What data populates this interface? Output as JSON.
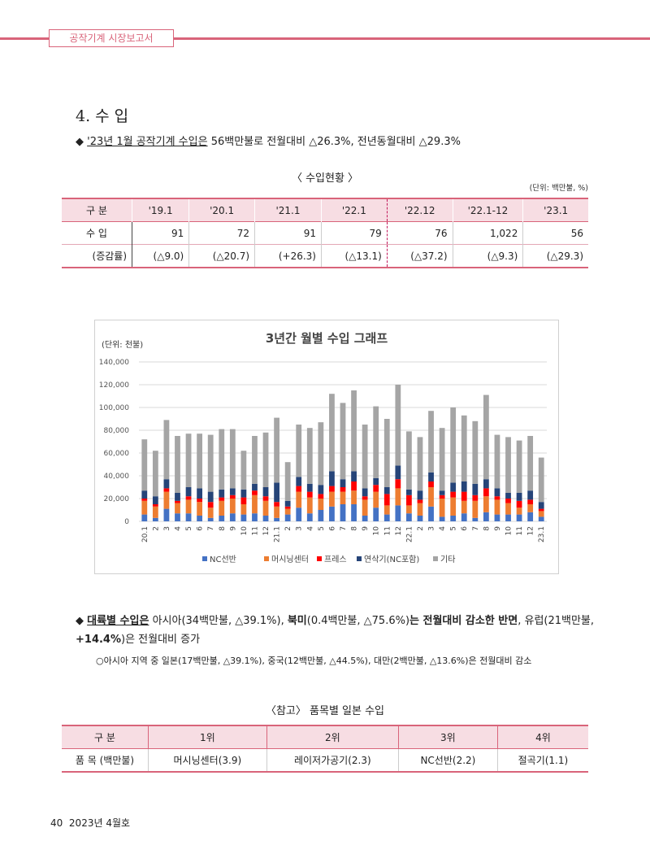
{
  "header": {
    "tab_label": "공작기계 시장보고서"
  },
  "section": {
    "title": "4. 수 입"
  },
  "bullet1": {
    "marker": "◆",
    "underlined": "'23년 1월 공작기계 수입은",
    "rest": " 56백만불로 전월대비 △26.3%, 전년동월대비 △29.3%"
  },
  "table1": {
    "title": "〈 수입현황 〉",
    "unit": "(단위: 백만불, %)",
    "headers": [
      "구 분",
      "'19.1",
      "'20.1",
      "'21.1",
      "'22.1",
      "'22.12",
      "'22.1-12",
      "'23.1"
    ],
    "rows": [
      [
        "수 입",
        "91",
        "72",
        "91",
        "79",
        "76",
        "1,022",
        "56"
      ],
      [
        "(증감률)",
        "(△9.0)",
        "(△20.7)",
        "(+26.3)",
        "(△13.1)",
        "(△37.2)",
        "(△9.3)",
        "(△29.3)"
      ]
    ]
  },
  "chart_data": {
    "type": "bar",
    "stacked": true,
    "title": "3년간 월별 수입 그래프",
    "unit_label": "(단위: 천불)",
    "yticks": [
      "0",
      "20,000",
      "40,000",
      "60,000",
      "80,000",
      "100,000",
      "120,000",
      "140,000"
    ],
    "ylim": [
      0,
      140000
    ],
    "categories": [
      "20.1",
      "2",
      "3",
      "4",
      "5",
      "6",
      "7",
      "8",
      "9",
      "10",
      "11",
      "12",
      "21.1",
      "2",
      "3",
      "4",
      "5",
      "6",
      "7",
      "8",
      "9",
      "10",
      "11",
      "12",
      "22.1",
      "2",
      "3",
      "4",
      "5",
      "6",
      "7",
      "8",
      "9",
      "10",
      "11",
      "12",
      "23.1"
    ],
    "series": [
      {
        "name": "NC선반",
        "color": "#4472c4",
        "values": [
          6000,
          3000,
          11000,
          7000,
          7000,
          5000,
          3000,
          5000,
          7000,
          6000,
          7000,
          5000,
          3000,
          6000,
          12000,
          7000,
          10000,
          13000,
          15000,
          15000,
          5000,
          12000,
          6000,
          14000,
          7000,
          5000,
          13000,
          4000,
          5000,
          7000,
          3000,
          8000,
          6000,
          6000,
          6000,
          8000,
          4000
        ]
      },
      {
        "name": "머시닝센터",
        "color": "#ed7d31",
        "values": [
          12000,
          10000,
          15000,
          9000,
          12000,
          12000,
          9000,
          13000,
          13000,
          9000,
          16000,
          13000,
          10000,
          5000,
          14000,
          14000,
          10000,
          13000,
          11000,
          12000,
          14000,
          14000,
          8000,
          15000,
          7000,
          11000,
          17000,
          16000,
          16000,
          11000,
          15000,
          14000,
          13000,
          10000,
          6000,
          7000,
          5000
        ]
      },
      {
        "name": "프레스",
        "color": "#ff0000",
        "values": [
          2000,
          2000,
          3000,
          2000,
          3000,
          3000,
          5000,
          3000,
          3000,
          6000,
          4000,
          4000,
          4000,
          2000,
          5000,
          5000,
          4000,
          5000,
          4000,
          8000,
          3000,
          6000,
          10000,
          8000,
          9000,
          3000,
          5000,
          3000,
          5000,
          8000,
          5000,
          7000,
          3000,
          4000,
          6000,
          4000,
          2000
        ]
      },
      {
        "name": "연삭기(NC포함)",
        "color": "#264478",
        "values": [
          7000,
          7000,
          8000,
          7000,
          8000,
          9000,
          9000,
          7000,
          6000,
          7000,
          6000,
          8000,
          17000,
          5000,
          8000,
          7000,
          8000,
          13000,
          7000,
          9000,
          7000,
          6000,
          6000,
          12000,
          5000,
          8000,
          8000,
          4000,
          8000,
          9000,
          10000,
          8000,
          7000,
          5000,
          7000,
          8000,
          6000
        ]
      },
      {
        "name": "기타",
        "color": "#a5a5a5",
        "values": [
          45000,
          40000,
          52000,
          50000,
          47000,
          48000,
          50000,
          53000,
          52000,
          34000,
          42000,
          48000,
          57000,
          34000,
          46000,
          49000,
          55000,
          68000,
          67000,
          71000,
          56000,
          63000,
          60000,
          71000,
          51000,
          47000,
          54000,
          55000,
          66000,
          58000,
          55000,
          74000,
          47000,
          49000,
          46000,
          48000,
          39000
        ]
      }
    ]
  },
  "bullet2": {
    "marker": "◆",
    "p1": "대륙별 수입은",
    "p2": " 아시아(34백만불, △39.1%), ",
    "p3": "북미",
    "p4": "(0.4백만불, △75.6%)",
    "p5": "는 전월대비 감소한 반면",
    "p6": ", 유럽(21백만불, ",
    "p7": "+14.4%",
    "p8": ")은 전월대비 증가"
  },
  "note": "○아시아 지역 중 일본(17백만불, △39.1%), 중국(12백만불, △44.5%), 대만(2백만불, △13.6%)은 전월대비 감소",
  "table2": {
    "title": "〈참고〉 품목별 일본 수입",
    "headers": [
      "구 분",
      "1위",
      "2위",
      "3위",
      "4위"
    ],
    "row": [
      "품 목 (백만불)",
      "머시닝센터(3.9)",
      "레이저가공기(2.3)",
      "NC선반(2.2)",
      "절곡기(1.1)"
    ]
  },
  "footer": {
    "page": "40",
    "issue": "2023년 4월호"
  }
}
